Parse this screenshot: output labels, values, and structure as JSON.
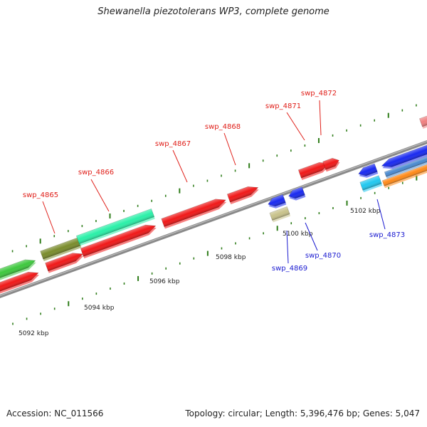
{
  "title": "Shewanella piezotolerans WP3, complete genome",
  "footer": {
    "accession": "Accession: NC_011566",
    "stats": "Topology: circular; Length: 5,396,476 bp; Genes: 5,047"
  },
  "scale_labels": [
    "5092 kbp",
    "5094 kbp",
    "5096 kbp",
    "5098 kbp",
    "5100 kbp",
    "5102 kbp"
  ],
  "colors": {
    "backbone": "#8a8a8a",
    "tick": "#2f7d1a",
    "forward_label": "#e0201a",
    "reverse_label": "#1a1ad0"
  },
  "genes": [
    {
      "id": "swp_4865",
      "strand": "forward",
      "color": "#7a8c2c"
    },
    {
      "id": "swp_4866",
      "strand": "forward",
      "color": "#2af0a8"
    },
    {
      "id": "swp_4867",
      "strand": "forward",
      "color": "#f01818"
    },
    {
      "id": "swp_4868",
      "strand": "forward",
      "color": "#f01818"
    },
    {
      "id": "swp_4869",
      "strand": "reverse",
      "color": "#c8c28a"
    },
    {
      "id": "swp_4870",
      "strand": "reverse",
      "color": "#1a2af0"
    },
    {
      "id": "swp_4871",
      "strand": "forward",
      "color": "#f01818"
    },
    {
      "id": "swp_4872",
      "strand": "forward",
      "color": "#f01818"
    },
    {
      "id": "swp_4873",
      "strand": "reverse",
      "color": "#20c8f0"
    }
  ]
}
